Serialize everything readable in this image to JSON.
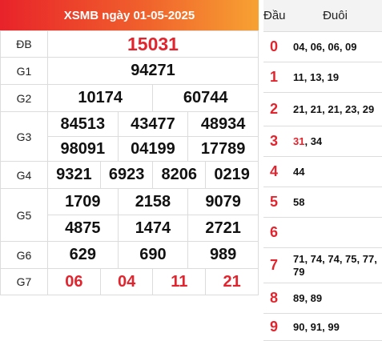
{
  "title": "XSMB ngày 01-05-2025",
  "prizes": {
    "db": {
      "label": "ĐB",
      "values": [
        "15031"
      ]
    },
    "g1": {
      "label": "G1",
      "values": [
        "94271"
      ]
    },
    "g2": {
      "label": "G2",
      "values": [
        "10174",
        "60744"
      ]
    },
    "g3": {
      "label": "G3",
      "values": [
        "84513",
        "43477",
        "48934",
        "98091",
        "04199",
        "17789"
      ]
    },
    "g4": {
      "label": "G4",
      "values": [
        "9321",
        "6923",
        "8206",
        "0219"
      ]
    },
    "g5": {
      "label": "G5",
      "values": [
        "1709",
        "2158",
        "9079",
        "4875",
        "1474",
        "2721"
      ]
    },
    "g6": {
      "label": "G6",
      "values": [
        "629",
        "690",
        "989"
      ]
    },
    "g7": {
      "label": "G7",
      "values": [
        "06",
        "04",
        "11",
        "21"
      ]
    }
  },
  "loto": {
    "head_label": "Đầu",
    "tail_label": "Đuôi",
    "rows": [
      {
        "head": "0",
        "tails": "04, 06, 06, 09"
      },
      {
        "head": "1",
        "tails": "11, 13, 19"
      },
      {
        "head": "2",
        "tails": "21, 21, 21, 23, 29"
      },
      {
        "head": "3",
        "tail_special": "31",
        "tail_sep": ", ",
        "tails": "34"
      },
      {
        "head": "4",
        "tails": "44"
      },
      {
        "head": "5",
        "tails": "58"
      },
      {
        "head": "6",
        "tails": ""
      },
      {
        "head": "7",
        "tails": "71, 74, 74, 75, 77, 79"
      },
      {
        "head": "8",
        "tails": "89, 89"
      },
      {
        "head": "9",
        "tails": "90, 91, 99"
      }
    ]
  },
  "colors": {
    "accent_red": "#e1242d",
    "title_start": "#e8232a",
    "title_end": "#f7a232"
  }
}
